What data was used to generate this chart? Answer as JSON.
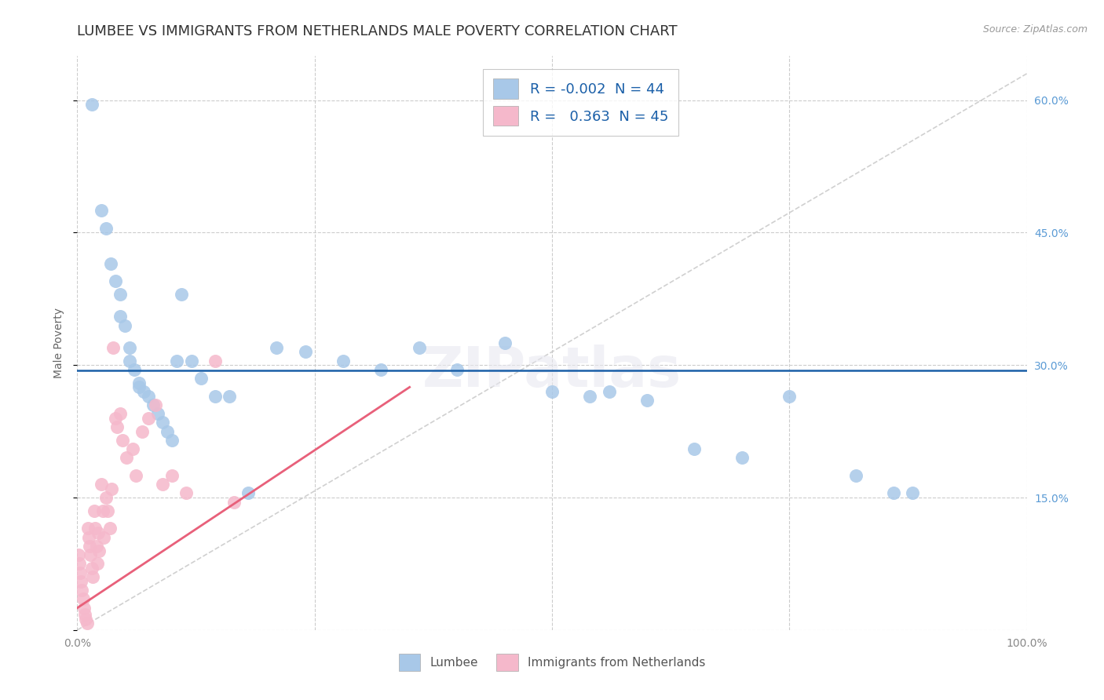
{
  "title": "LUMBEE VS IMMIGRANTS FROM NETHERLANDS MALE POVERTY CORRELATION CHART",
  "source_text": "Source: ZipAtlas.com",
  "ylabel": "Male Poverty",
  "xlim": [
    0,
    1.0
  ],
  "ylim": [
    0,
    0.65
  ],
  "xtick_vals": [
    0.0,
    0.25,
    0.5,
    0.75,
    1.0
  ],
  "xticklabels": [
    "0.0%",
    "",
    "",
    "",
    "100.0%"
  ],
  "ytick_vals": [
    0.0,
    0.15,
    0.3,
    0.45,
    0.6
  ],
  "yticklabels": [
    "",
    "15.0%",
    "30.0%",
    "45.0%",
    "60.0%"
  ],
  "lumbee_R": "-0.002",
  "lumbee_N": "44",
  "netherlands_R": "0.363",
  "netherlands_N": "45",
  "lumbee_color": "#a8c8e8",
  "netherlands_color": "#f5b8cb",
  "lumbee_line_color": "#1a5fa8",
  "netherlands_line_color": "#e8607a",
  "diag_line_color": "#c8c8c8",
  "lumbee_x": [
    0.015,
    0.025,
    0.03,
    0.035,
    0.04,
    0.045,
    0.045,
    0.05,
    0.055,
    0.055,
    0.06,
    0.065,
    0.065,
    0.07,
    0.075,
    0.08,
    0.085,
    0.09,
    0.095,
    0.1,
    0.105,
    0.11,
    0.12,
    0.13,
    0.145,
    0.16,
    0.18,
    0.21,
    0.24,
    0.28,
    0.32,
    0.36,
    0.4,
    0.45,
    0.5,
    0.54,
    0.56,
    0.6,
    0.65,
    0.7,
    0.75,
    0.82,
    0.86,
    0.88
  ],
  "lumbee_y": [
    0.595,
    0.475,
    0.455,
    0.415,
    0.395,
    0.38,
    0.355,
    0.345,
    0.32,
    0.305,
    0.295,
    0.28,
    0.275,
    0.27,
    0.265,
    0.255,
    0.245,
    0.235,
    0.225,
    0.215,
    0.305,
    0.38,
    0.305,
    0.285,
    0.265,
    0.265,
    0.155,
    0.32,
    0.315,
    0.305,
    0.295,
    0.32,
    0.295,
    0.325,
    0.27,
    0.265,
    0.27,
    0.26,
    0.205,
    0.195,
    0.265,
    0.175,
    0.155,
    0.155
  ],
  "netherlands_x": [
    0.001,
    0.002,
    0.003,
    0.004,
    0.005,
    0.006,
    0.007,
    0.008,
    0.009,
    0.01,
    0.011,
    0.012,
    0.013,
    0.014,
    0.015,
    0.016,
    0.018,
    0.019,
    0.02,
    0.021,
    0.022,
    0.023,
    0.025,
    0.027,
    0.028,
    0.03,
    0.032,
    0.034,
    0.036,
    0.038,
    0.04,
    0.042,
    0.045,
    0.048,
    0.052,
    0.058,
    0.062,
    0.068,
    0.075,
    0.082,
    0.09,
    0.1,
    0.115,
    0.145,
    0.165
  ],
  "netherlands_y": [
    0.085,
    0.075,
    0.065,
    0.055,
    0.045,
    0.035,
    0.025,
    0.018,
    0.012,
    0.008,
    0.115,
    0.105,
    0.095,
    0.085,
    0.07,
    0.06,
    0.135,
    0.115,
    0.095,
    0.075,
    0.11,
    0.09,
    0.165,
    0.135,
    0.105,
    0.15,
    0.135,
    0.115,
    0.16,
    0.32,
    0.24,
    0.23,
    0.245,
    0.215,
    0.195,
    0.205,
    0.175,
    0.225,
    0.24,
    0.255,
    0.165,
    0.175,
    0.155,
    0.305,
    0.145
  ],
  "background_color": "#ffffff",
  "grid_color": "#cccccc",
  "title_color": "#333333",
  "title_fontsize": 13,
  "axis_label_fontsize": 10,
  "tick_fontsize": 10,
  "tick_color": "#5b9bd5",
  "xtick_color": "#888888",
  "legend_R_color": "#1a5fa8",
  "legend_N_color": "#1a5fa8"
}
